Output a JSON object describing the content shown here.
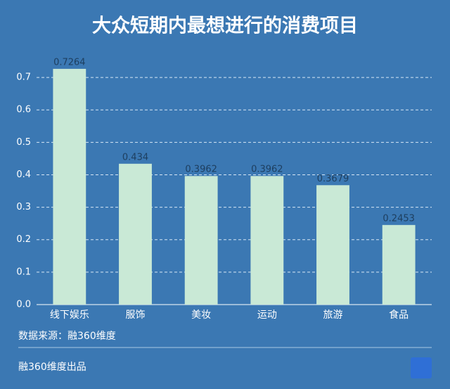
{
  "chart_data": {
    "type": "bar",
    "title": "大众短期内最想进行的消费项目",
    "categories": [
      "线下娱乐",
      "服饰",
      "美妆",
      "运动",
      "旅游",
      "食品"
    ],
    "values": [
      0.7264,
      0.434,
      0.3962,
      0.3962,
      0.3679,
      0.2453
    ],
    "color": "#c9e9d6",
    "ylim": [
      0,
      0.75
    ],
    "yticks": [
      {
        "value": 0,
        "label": "0.0"
      },
      0.1,
      0.2,
      0.3,
      0.4,
      0.5,
      0.6,
      0.7
    ],
    "grid": true,
    "source": "数据来源：融360维度",
    "footer": "融360维度出品"
  }
}
